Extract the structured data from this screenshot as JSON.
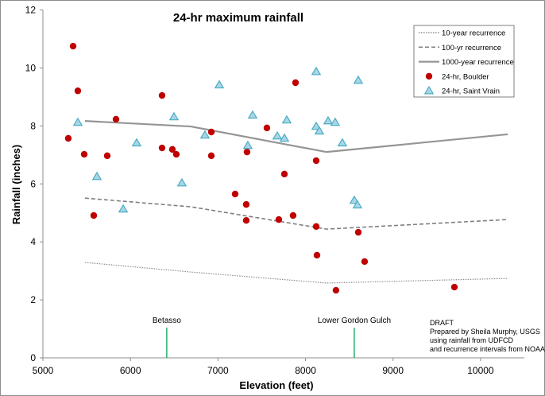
{
  "chart_data": {
    "type": "scatter",
    "title": "24-hr maximum rainfall",
    "xlabel": "Elevation (feet)",
    "ylabel": "Rainfall (inches)",
    "xlim": [
      5000,
      10500
    ],
    "ylim": [
      0,
      12
    ],
    "xticks": [
      5000,
      6000,
      7000,
      8000,
      9000,
      10000
    ],
    "yticks": [
      0,
      2,
      4,
      6,
      8,
      10,
      12
    ],
    "grid": false,
    "legend_position": "top-right",
    "series": [
      {
        "name": "10-year recurrence",
        "kind": "line",
        "style": "dotted",
        "color": "#8c8c8c",
        "x": [
          5480,
          6690,
          8240,
          10310
        ],
        "y": [
          3.29,
          2.96,
          2.58,
          2.74
        ]
      },
      {
        "name": "100-yr recurrence",
        "kind": "line",
        "style": "dashed",
        "color": "#7f7f7f",
        "x": [
          5480,
          6690,
          8240,
          10310
        ],
        "y": [
          5.51,
          5.21,
          4.44,
          4.77
        ]
      },
      {
        "name": "1000-year recurrence",
        "kind": "line",
        "style": "solid",
        "color": "#959595",
        "x": [
          5480,
          6690,
          8240,
          10310
        ],
        "y": [
          8.17,
          7.98,
          7.1,
          7.71
        ]
      },
      {
        "name": "24-hr, Boulder",
        "kind": "marker",
        "marker": "circle",
        "color": "#c00000",
        "x": [
          5345,
          5399,
          5290,
          5472,
          5735,
          5835,
          5581,
          6361,
          6361,
          6479,
          6524,
          6924,
          6924,
          7559,
          7886,
          7332,
          7759,
          7196,
          7323,
          7323,
          7695,
          7858,
          8122,
          8122,
          8603,
          8131,
          8675,
          8348,
          9701
        ],
        "y": [
          10.75,
          9.21,
          7.57,
          7.02,
          6.97,
          8.23,
          4.91,
          9.05,
          7.24,
          7.19,
          7.02,
          7.79,
          6.97,
          7.93,
          9.49,
          7.1,
          6.34,
          5.65,
          5.29,
          4.74,
          4.77,
          4.91,
          6.8,
          4.53,
          4.33,
          3.54,
          3.32,
          2.33,
          2.44
        ]
      },
      {
        "name": "24-hr, Saint Vrain",
        "kind": "marker",
        "marker": "triangle",
        "color": "#4bacc6",
        "x": [
          5399,
          5617,
          5917,
          6071,
          6497,
          6588,
          6851,
          7015,
          7341,
          7396,
          7677,
          7759,
          7786,
          8122,
          8122,
          8158,
          8258,
          8339,
          8421,
          8557,
          8593,
          8603
        ],
        "y": [
          8.12,
          6.25,
          5.13,
          7.41,
          8.31,
          6.03,
          7.68,
          9.41,
          7.32,
          8.37,
          7.65,
          7.57,
          8.2,
          9.87,
          7.98,
          7.82,
          8.17,
          8.12,
          7.41,
          5.43,
          5.27,
          9.57
        ]
      }
    ],
    "annotations": [
      {
        "label": "Betasso",
        "x": 6415,
        "color": "#00a651"
      },
      {
        "label": "Lower Gordon Gulch",
        "x": 8557,
        "color": "#00a651"
      }
    ],
    "note": [
      "DRAFT",
      "Prepared by Sheila Murphy, USGS",
      "using rainfall from UDFCD",
      "and recurrence intervals from NOAA"
    ]
  }
}
